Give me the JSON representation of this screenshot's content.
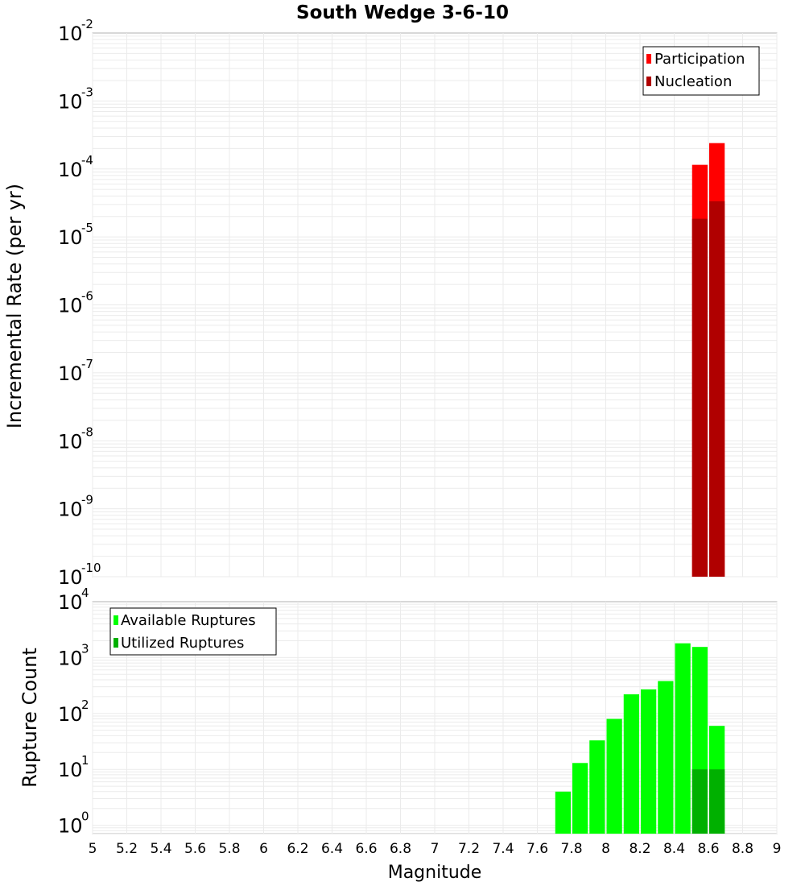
{
  "chart_data": {
    "type": "bar",
    "title": "South Wedge 3-6-10",
    "xlabel": "Magnitude",
    "xlim": [
      5,
      9
    ],
    "x_ticks": [
      "5",
      "5.2",
      "5.4",
      "5.6",
      "5.8",
      "6",
      "6.2",
      "6.4",
      "6.6",
      "6.8",
      "7",
      "7.2",
      "7.4",
      "7.6",
      "7.8",
      "8",
      "8.2",
      "8.4",
      "8.6",
      "8.8",
      "9"
    ],
    "bin_width": 0.1,
    "panels": [
      {
        "id": "rate",
        "ylabel": "Incremental Rate (per yr)",
        "yscale": "log",
        "ylim_exp": [
          -10,
          -2
        ],
        "y_ticks": [
          {
            "base": "10",
            "exp": "-10"
          },
          {
            "base": "10",
            "exp": "-9"
          },
          {
            "base": "10",
            "exp": "-8"
          },
          {
            "base": "10",
            "exp": "-7"
          },
          {
            "base": "10",
            "exp": "-6"
          },
          {
            "base": "10",
            "exp": "-5"
          },
          {
            "base": "10",
            "exp": "-4"
          },
          {
            "base": "10",
            "exp": "-3"
          },
          {
            "base": "10",
            "exp": "-2"
          }
        ],
        "legend_position": "top-right",
        "series": [
          {
            "name": "Participation",
            "color": "#ff0000",
            "x": [
              8.55,
              8.65
            ],
            "values": [
              0.000115,
              0.00024
            ]
          },
          {
            "name": "Nucleation",
            "color": "#b00000",
            "x": [
              8.55,
              8.65
            ],
            "values": [
              1.85e-05,
              3.35e-05
            ]
          }
        ]
      },
      {
        "id": "count",
        "ylabel": "Rupture Count",
        "yscale": "log",
        "ylim_exp": [
          -0.15,
          4
        ],
        "y_ticks": [
          {
            "base": "10",
            "exp": "0"
          },
          {
            "base": "10",
            "exp": "1"
          },
          {
            "base": "10",
            "exp": "2"
          },
          {
            "base": "10",
            "exp": "3"
          },
          {
            "base": "10",
            "exp": "4"
          }
        ],
        "legend_position": "top-left",
        "series": [
          {
            "name": "Available Ruptures",
            "color": "#00ff00",
            "x": [
              7.75,
              7.85,
              7.95,
              8.05,
              8.15,
              8.25,
              8.35,
              8.45,
              8.55,
              8.65
            ],
            "values": [
              4,
              13,
              33,
              80,
              220,
              270,
              380,
              1800,
              1550,
              60
            ]
          },
          {
            "name": "Utilized Ruptures",
            "color": "#00b000",
            "x": [
              8.55,
              8.65
            ],
            "values": [
              10,
              10
            ]
          }
        ]
      }
    ]
  }
}
